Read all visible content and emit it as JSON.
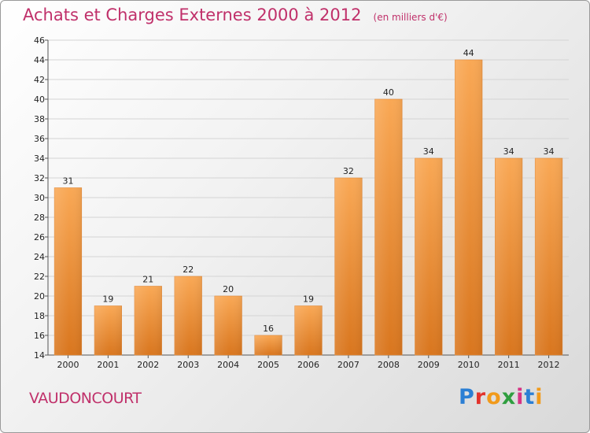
{
  "header": {
    "title": "Achats et Charges Externes 2000 à 2012",
    "unit": "(en milliers d'€)"
  },
  "commune": "VAUDONCOURT",
  "logo": {
    "text": "Proxiti",
    "colors": [
      "#2b7fd4",
      "#e2332c",
      "#f19a1b",
      "#2f9e3f",
      "#d63384",
      "#2b7fd4",
      "#f19a1b"
    ]
  },
  "chart_data": {
    "type": "bar",
    "categories": [
      "2000",
      "2001",
      "2002",
      "2003",
      "2004",
      "2005",
      "2006",
      "2007",
      "2008",
      "2009",
      "2010",
      "2011",
      "2012"
    ],
    "values": [
      31,
      19,
      21,
      22,
      20,
      16,
      19,
      32,
      40,
      34,
      44,
      34,
      34
    ],
    "ylim": [
      14,
      46
    ],
    "yticks": [
      14,
      16,
      18,
      20,
      22,
      24,
      26,
      28,
      30,
      32,
      34,
      36,
      38,
      40,
      42,
      44,
      46
    ],
    "grid": true,
    "bar_color_top": "#f9a855",
    "bar_color_bottom": "#d9761e"
  }
}
